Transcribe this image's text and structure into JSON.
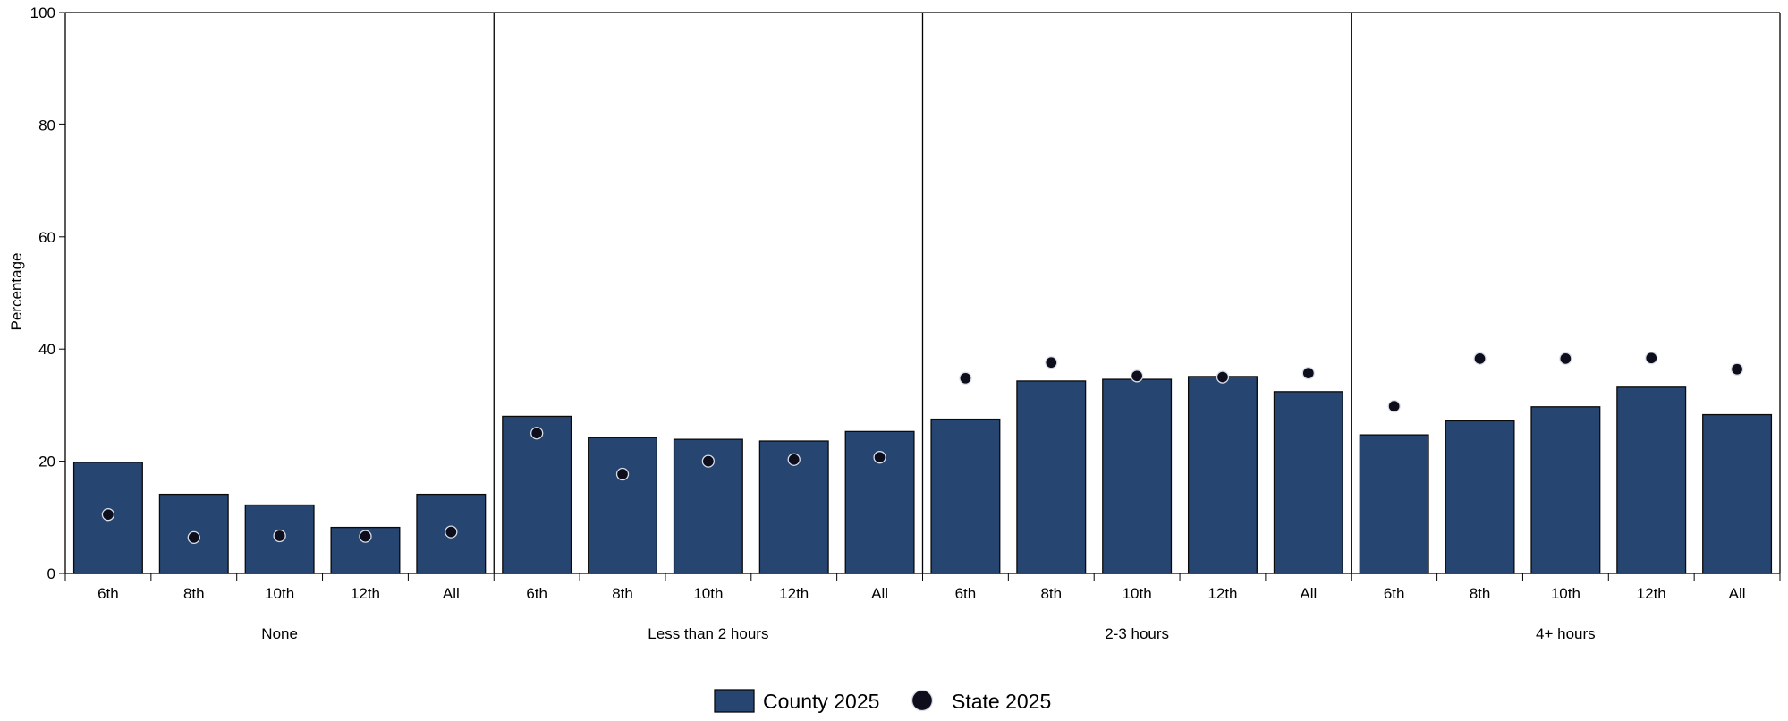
{
  "chart_data": {
    "type": "bar",
    "ylabel": "Percentage",
    "ylim": [
      0,
      100
    ],
    "yticks": [
      "0",
      "20",
      "40",
      "60",
      "80",
      "100"
    ],
    "grid": false,
    "legend_position": "bottom-center",
    "categories": [
      "6th",
      "8th",
      "10th",
      "12th",
      "All"
    ],
    "groups": [
      "None",
      "Less than 2 hours",
      "2-3 hours",
      "4+ hours"
    ],
    "series": [
      {
        "name": "County 2025",
        "mark": "bar",
        "color": "#264571",
        "values": [
          [
            19.8,
            14.1,
            12.2,
            8.2,
            14.1
          ],
          [
            28.0,
            24.2,
            23.9,
            23.6,
            25.3
          ],
          [
            27.5,
            34.3,
            34.6,
            35.1,
            32.4
          ],
          [
            24.7,
            27.2,
            29.7,
            33.2,
            28.3
          ]
        ]
      },
      {
        "name": "State 2025",
        "mark": "dot",
        "color": "#0d0d1c",
        "values": [
          [
            10.5,
            6.4,
            6.7,
            6.6,
            7.4
          ],
          [
            25.0,
            17.7,
            20.0,
            20.3,
            20.7
          ],
          [
            34.8,
            37.6,
            35.2,
            35.0,
            35.7
          ],
          [
            29.8,
            38.3,
            38.3,
            38.4,
            36.4
          ]
        ]
      }
    ]
  }
}
